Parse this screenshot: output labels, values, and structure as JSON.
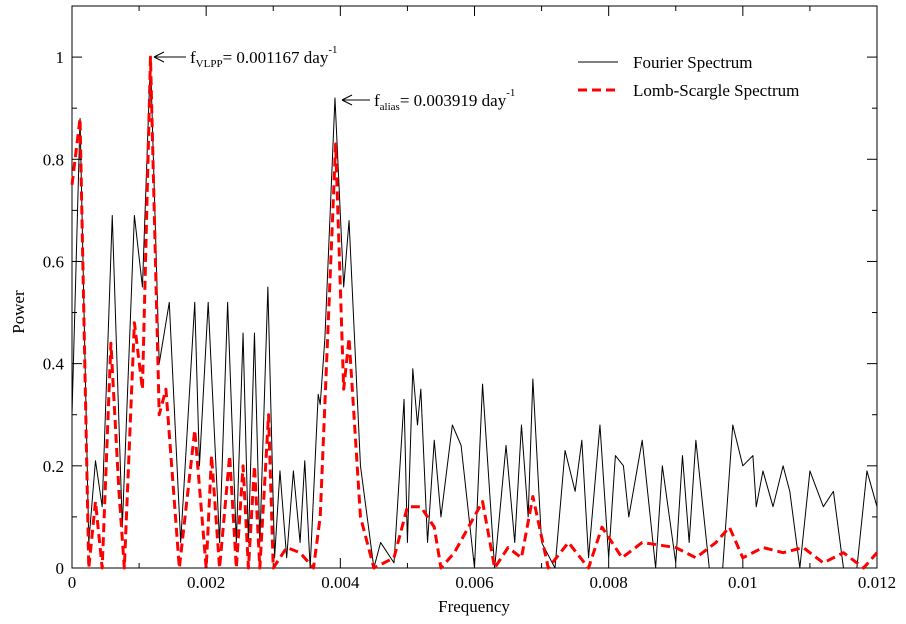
{
  "chart_data": {
    "type": "line",
    "xlabel": "Frequency",
    "ylabel": "Power",
    "xlim": [
      0,
      0.012
    ],
    "ylim": [
      0,
      1.1
    ],
    "xticks": [
      0,
      0.002,
      0.004,
      0.006,
      0.008,
      0.01,
      0.012
    ],
    "yticks": [
      0,
      0.2,
      0.4,
      0.6,
      0.8,
      1
    ],
    "legend": "upper right",
    "annotations": [
      {
        "text": "f",
        "sub": "VLPP",
        "rest": "= 0.001167 day",
        "sup": "-1"
      },
      {
        "text": "f",
        "sub": "alias",
        "rest": "= 0.003919 day",
        "sup": "-1"
      }
    ],
    "series": [
      {
        "name": "Fourier Spectrum",
        "color": "#000000",
        "style": "solid",
        "x": [
          0,
          0.00012,
          0.00025,
          0.00035,
          0.00045,
          0.0006,
          0.00075,
          0.00093,
          0.00105,
          0.00117,
          0.0013,
          0.00145,
          0.00162,
          0.00183,
          0.0019,
          0.00203,
          0.0022,
          0.00232,
          0.00245,
          0.00255,
          0.00263,
          0.00272,
          0.0028,
          0.00292,
          0.00302,
          0.0031,
          0.0032,
          0.0033,
          0.0034,
          0.00347,
          0.00355,
          0.00367,
          0.0037,
          0.00377,
          0.00392,
          0.00405,
          0.00413,
          0.0043,
          0.0045,
          0.0046,
          0.0048,
          0.00495,
          0.005,
          0.00508,
          0.00515,
          0.0052,
          0.0053,
          0.0054,
          0.0055,
          0.00567,
          0.0058,
          0.006,
          0.00612,
          0.0063,
          0.00647,
          0.0066,
          0.0067,
          0.0068,
          0.00687,
          0.007,
          0.0072,
          0.00735,
          0.0075,
          0.0076,
          0.0077,
          0.00787,
          0.008,
          0.0081,
          0.00822,
          0.0083,
          0.0085,
          0.0087,
          0.0088,
          0.009,
          0.0091,
          0.0092,
          0.0093,
          0.0095,
          0.0097,
          0.00985,
          0.01,
          0.01015,
          0.0102,
          0.0103,
          0.01045,
          0.0106,
          0.0107,
          0.01085,
          0.011,
          0.0112,
          0.01135,
          0.0115,
          0.0117,
          0.01185,
          0.012
        ],
        "values": [
          0.3,
          0.88,
          0.05,
          0.21,
          0.12,
          0.69,
          0.08,
          0.69,
          0.55,
          1.0,
          0.4,
          0.52,
          0.05,
          0.52,
          0.2,
          0.52,
          0.05,
          0.52,
          0.05,
          0.46,
          0.05,
          0.46,
          0.05,
          0.55,
          0.02,
          0.19,
          0.02,
          0.19,
          0.05,
          0.21,
          0.0,
          0.34,
          0.32,
          0.45,
          0.92,
          0.55,
          0.68,
          0.2,
          0.0,
          0.05,
          0.01,
          0.33,
          0.05,
          0.39,
          0.28,
          0.35,
          0.05,
          0.25,
          0.1,
          0.28,
          0.24,
          0.0,
          0.36,
          0.0,
          0.24,
          0.05,
          0.28,
          0.1,
          0.37,
          0.05,
          0.0,
          0.23,
          0.15,
          0.25,
          0.02,
          0.28,
          0.02,
          0.22,
          0.2,
          0.1,
          0.25,
          0.0,
          0.2,
          0.01,
          0.22,
          0.05,
          0.25,
          0.0,
          0.0,
          0.28,
          0.2,
          0.22,
          0.12,
          0.19,
          0.12,
          0.2,
          0.15,
          0.0,
          0.19,
          0.12,
          0.15,
          0.0,
          0.0,
          0.19,
          0.12
        ]
      },
      {
        "name": "Lomb-Scargle Spectrum",
        "color": "#ff0000",
        "style": "dashed",
        "x": [
          0,
          0.00012,
          0.00025,
          0.00035,
          0.00045,
          0.00058,
          0.0007,
          0.00078,
          0.00093,
          0.00105,
          0.00117,
          0.0013,
          0.0014,
          0.0016,
          0.00183,
          0.002,
          0.00208,
          0.0022,
          0.00235,
          0.00245,
          0.00255,
          0.00263,
          0.00272,
          0.0028,
          0.00293,
          0.003,
          0.0032,
          0.0034,
          0.0036,
          0.0037,
          0.00393,
          0.00405,
          0.00413,
          0.0043,
          0.0045,
          0.0048,
          0.005,
          0.0052,
          0.0054,
          0.0055,
          0.0057,
          0.00612,
          0.0063,
          0.0065,
          0.0067,
          0.00687,
          0.0071,
          0.0074,
          0.0077,
          0.0079,
          0.0082,
          0.0085,
          0.009,
          0.0093,
          0.0096,
          0.0098,
          0.01,
          0.0103,
          0.0106,
          0.0109,
          0.0112,
          0.0115,
          0.0118,
          0.012
        ],
        "values": [
          0.75,
          0.88,
          0.0,
          0.13,
          0.0,
          0.44,
          0.15,
          0.0,
          0.48,
          0.35,
          1.0,
          0.3,
          0.35,
          0.0,
          0.27,
          0.0,
          0.22,
          0.0,
          0.22,
          0.0,
          0.2,
          0.0,
          0.2,
          0.0,
          0.3,
          0.0,
          0.04,
          0.03,
          0.0,
          0.1,
          0.83,
          0.35,
          0.45,
          0.1,
          0.0,
          0.02,
          0.12,
          0.12,
          0.08,
          0.0,
          0.03,
          0.13,
          0.0,
          0.04,
          0.02,
          0.14,
          0.0,
          0.05,
          0.0,
          0.08,
          0.02,
          0.05,
          0.04,
          0.02,
          0.05,
          0.08,
          0.02,
          0.04,
          0.03,
          0.04,
          0.01,
          0.03,
          0.0,
          0.03
        ]
      }
    ]
  }
}
